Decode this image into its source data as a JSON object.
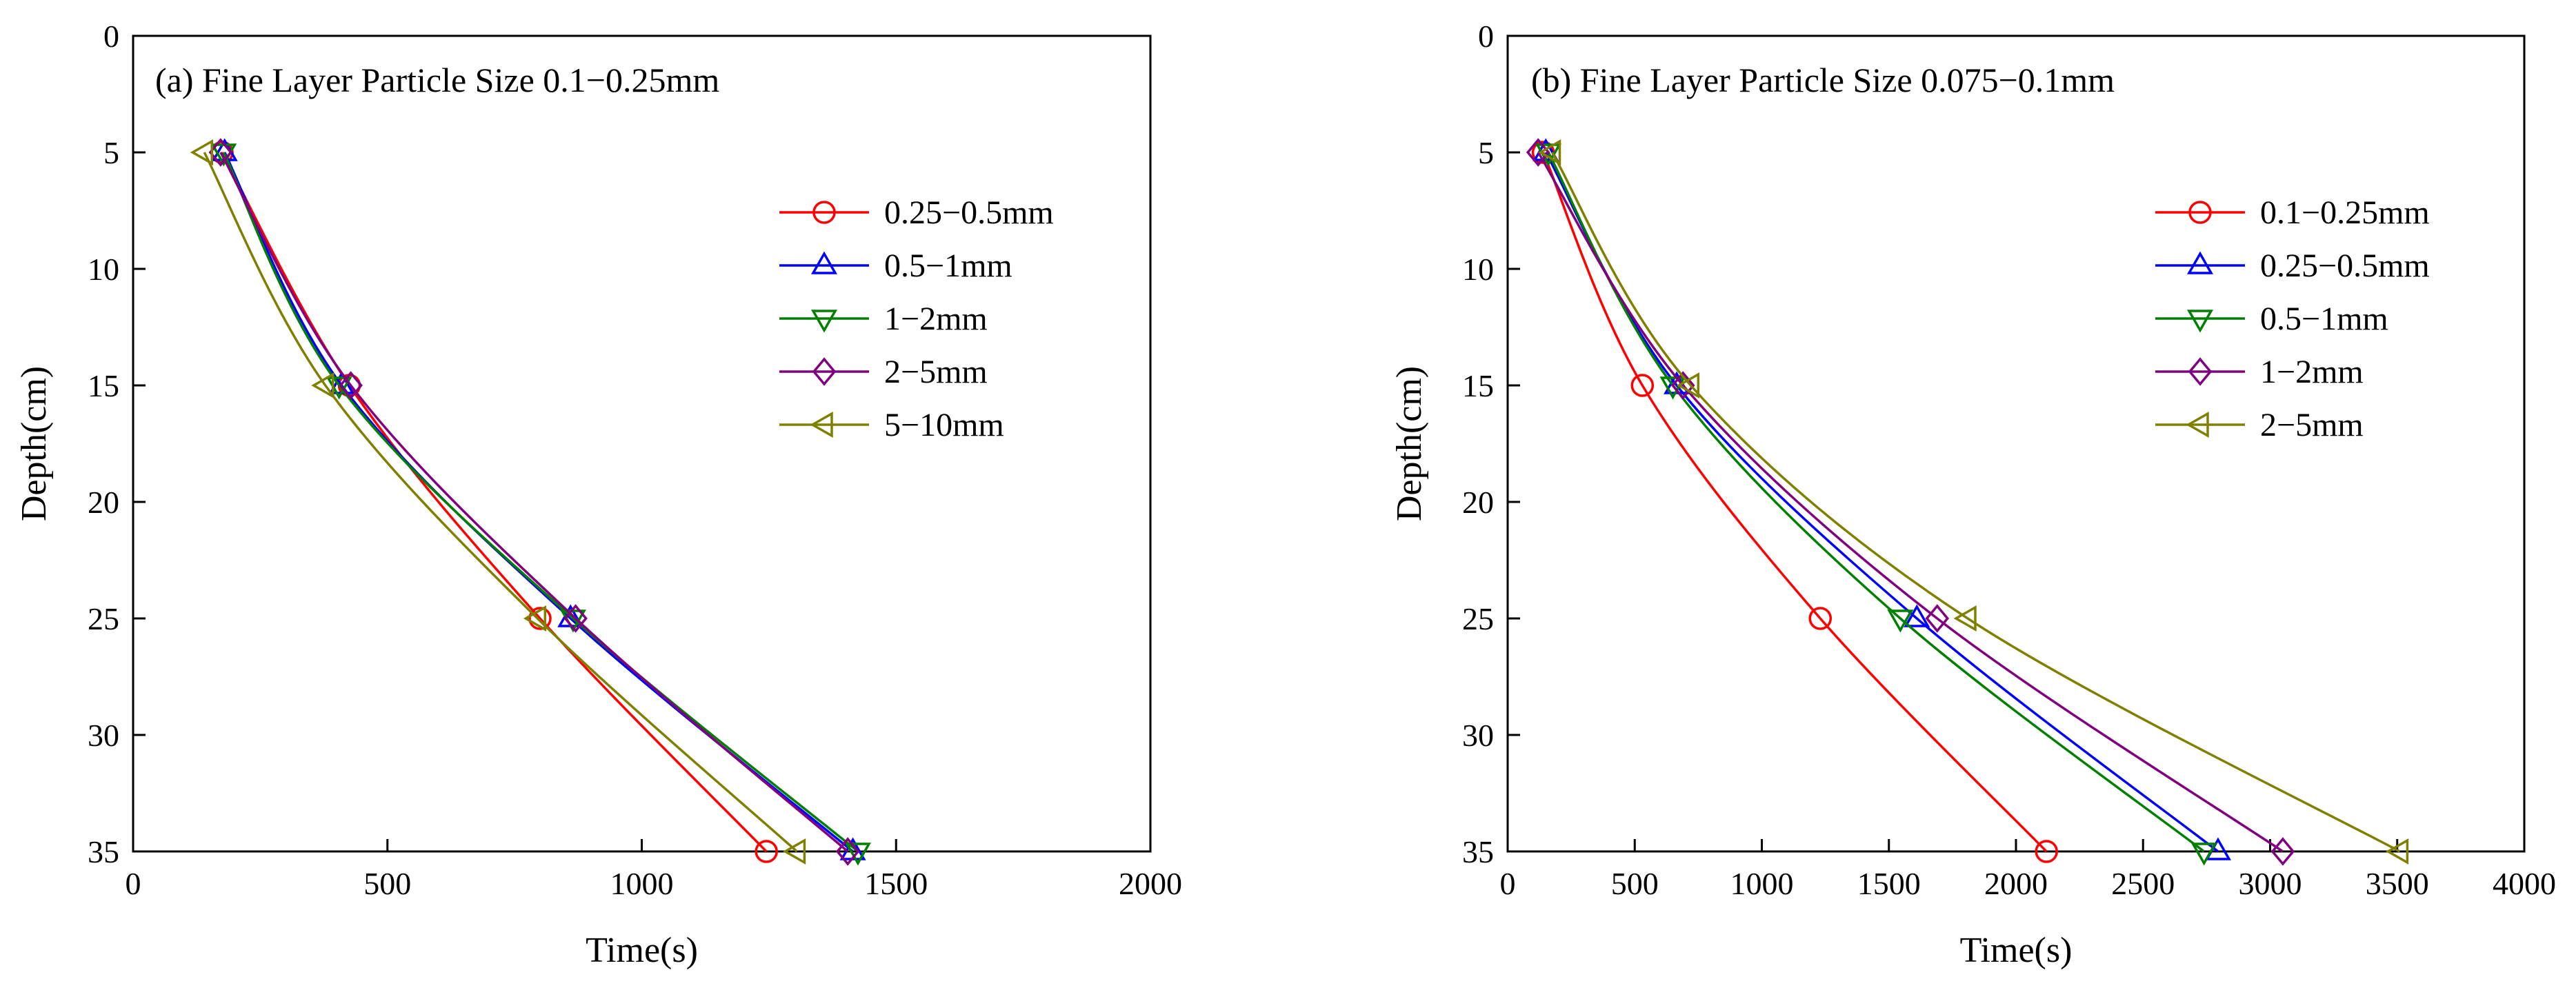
{
  "figure": {
    "colors": {
      "red": "#ff0000",
      "blue": "#0000ff",
      "green": "#008000",
      "purple": "#800080",
      "olive": "#808000"
    }
  },
  "chart_data": [
    {
      "type": "line",
      "title": "(a) Fine Layer Particle Size 0.1−0.25mm",
      "xlabel": "Time(s)",
      "ylabel": "Depth(cm)",
      "xlim": [
        0,
        2000
      ],
      "ylim": [
        0,
        35
      ],
      "y_inverted": true,
      "x_ticks": [
        "0",
        "500",
        "1000",
        "1500",
        "2000"
      ],
      "y_ticks": [
        "0",
        "5",
        "10",
        "15",
        "20",
        "25",
        "30",
        "35"
      ],
      "legend_position": "upper-right",
      "series": [
        {
          "name": "0.25−0.5mm",
          "color": "#ff0000",
          "marker": "circle",
          "x": [
            175,
            425,
            800,
            1245
          ],
          "y": [
            5,
            15,
            25,
            35
          ]
        },
        {
          "name": "0.5−1mm",
          "color": "#0000ff",
          "marker": "triangle-up",
          "x": [
            180,
            410,
            860,
            1415
          ],
          "y": [
            5,
            15,
            25,
            35
          ]
        },
        {
          "name": "1−2mm",
          "color": "#008000",
          "marker": "triangle-down",
          "x": [
            178,
            405,
            865,
            1425
          ],
          "y": [
            5,
            15,
            25,
            35
          ]
        },
        {
          "name": "2−5mm",
          "color": "#800080",
          "marker": "diamond",
          "x": [
            172,
            428,
            870,
            1405
          ],
          "y": [
            5,
            15,
            25,
            35
          ]
        },
        {
          "name": "5−10mm",
          "color": "#808000",
          "marker": "triangle-left",
          "x": [
            140,
            378,
            795,
            1305
          ],
          "y": [
            5,
            15,
            25,
            35
          ]
        }
      ]
    },
    {
      "type": "line",
      "title": "(b) Fine Layer Particle Size 0.075−0.1mm",
      "xlabel": "Time(s)",
      "ylabel": "Depth(cm)",
      "xlim": [
        0,
        4000
      ],
      "ylim": [
        0,
        35
      ],
      "y_inverted": true,
      "x_ticks": [
        "0",
        "500",
        "1000",
        "1500",
        "2000",
        "2500",
        "3000",
        "3500",
        "4000"
      ],
      "y_ticks": [
        "0",
        "5",
        "10",
        "15",
        "20",
        "25",
        "30",
        "35"
      ],
      "legend_position": "upper-right",
      "series": [
        {
          "name": "0.1−0.25mm",
          "color": "#ff0000",
          "marker": "circle",
          "x": [
            140,
            530,
            1230,
            2120
          ],
          "y": [
            5,
            15,
            25,
            35
          ]
        },
        {
          "name": "0.25−0.5mm",
          "color": "#0000ff",
          "marker": "triangle-up",
          "x": [
            150,
            665,
            1610,
            2795
          ],
          "y": [
            5,
            15,
            25,
            35
          ]
        },
        {
          "name": "0.5−1mm",
          "color": "#008000",
          "marker": "triangle-down",
          "x": [
            160,
            650,
            1545,
            2740
          ],
          "y": [
            5,
            15,
            25,
            35
          ]
        },
        {
          "name": "1−2mm",
          "color": "#800080",
          "marker": "diamond",
          "x": [
            120,
            690,
            1690,
            3050
          ],
          "y": [
            5,
            15,
            25,
            35
          ]
        },
        {
          "name": "2−5mm",
          "color": "#808000",
          "marker": "triangle-left",
          "x": [
            175,
            720,
            1810,
            3510
          ],
          "y": [
            5,
            15,
            25,
            35
          ]
        }
      ]
    }
  ]
}
